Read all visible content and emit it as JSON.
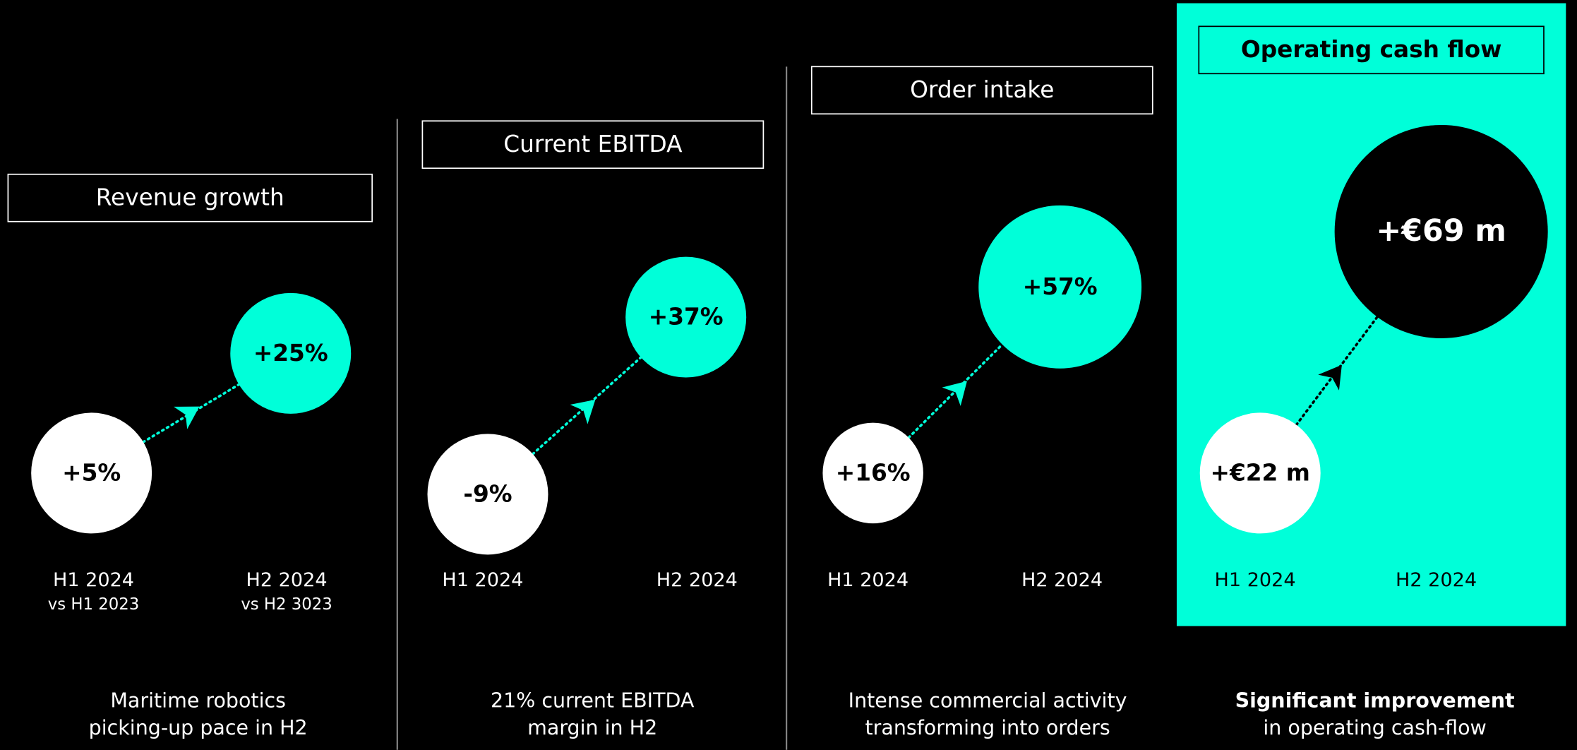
{
  "panels": [
    {
      "title": "Revenue growth",
      "h1_value": "+5%",
      "h2_value": "+25%",
      "h1_label": "H1 2024",
      "h1_sub": "vs H1 2023",
      "h2_label": "H2 2024",
      "h2_sub": "vs H2 3023",
      "caption": [
        "Maritime robotics",
        "picking-up pace in H2"
      ]
    },
    {
      "title": "Current EBITDA",
      "h1_value": "-9%",
      "h2_value": "+37%",
      "h1_label": "H1 2024",
      "h2_label": "H2 2024",
      "caption": [
        "21% current EBITDA",
        "margin in H2"
      ]
    },
    {
      "title": "Order intake",
      "h1_value": "+16%",
      "h2_value": "+57%",
      "h1_label": "H1 2024",
      "h2_label": "H2 2024",
      "caption": [
        "Intense commercial activity",
        "transforming into orders"
      ]
    },
    {
      "title": "Operating cash flow",
      "h1_value": "+€22 m",
      "h2_value": "+€69 m",
      "h1_label": "H1 2024",
      "h2_label": "H2 2024",
      "caption": [
        "Significant improvement",
        "in operating cash-flow"
      ]
    }
  ]
}
